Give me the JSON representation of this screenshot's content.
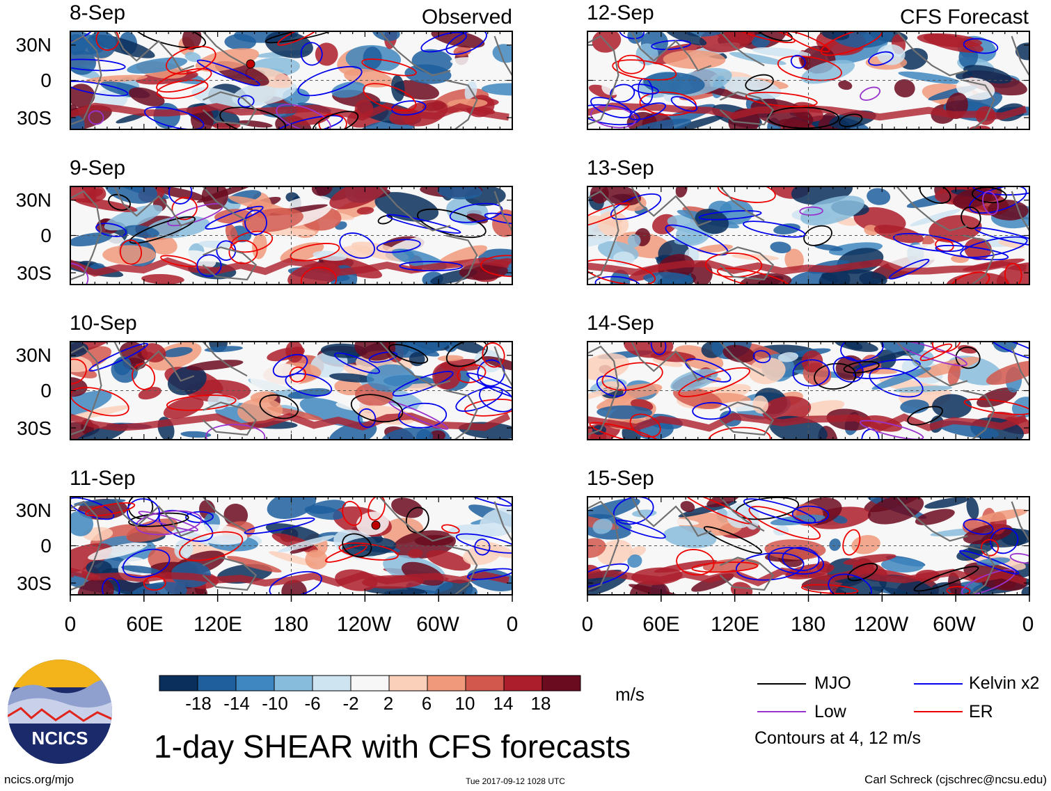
{
  "title": "1-day SHEAR with CFS forecasts",
  "observed_label": "Observed",
  "forecast_label": "CFS Forecast",
  "observed_dates": [
    "8-Sep",
    "9-Sep",
    "10-Sep",
    "11-Sep"
  ],
  "forecast_dates": [
    "12-Sep",
    "13-Sep",
    "14-Sep",
    "15-Sep"
  ],
  "lat_labels": [
    "30N",
    "0",
    "30S"
  ],
  "lon_labels": [
    "0",
    "60E",
    "120E",
    "180",
    "120W",
    "60W",
    "0"
  ],
  "colorbar": {
    "ticks": [
      "-18",
      "-14",
      "-10",
      "-6",
      "-2",
      "2",
      "6",
      "10",
      "14",
      "18"
    ],
    "colors": [
      "#0b2f5c",
      "#1f5f9e",
      "#3f87c0",
      "#88bcdc",
      "#cfe4f1",
      "#f7f7f7",
      "#fbd0bb",
      "#f09a7b",
      "#d2584e",
      "#ad1e2c",
      "#6b0b20"
    ],
    "unit": "m/s"
  },
  "legend": {
    "items": [
      {
        "label": "MJO",
        "color": "#000000"
      },
      {
        "label": "Kelvin x2",
        "color": "#0000ee"
      },
      {
        "label": "Low",
        "color": "#9932cc"
      },
      {
        "label": "ER",
        "color": "#ee0000"
      }
    ],
    "note": "Contours at 4, 12 m/s"
  },
  "logo_text": "NCICS",
  "website": "ncics.org/mjo",
  "timestamp": "Tue 2017-09-12 1028 UTC",
  "credit": "Carl Schreck (cjschrec@ncsu.edu)"
}
